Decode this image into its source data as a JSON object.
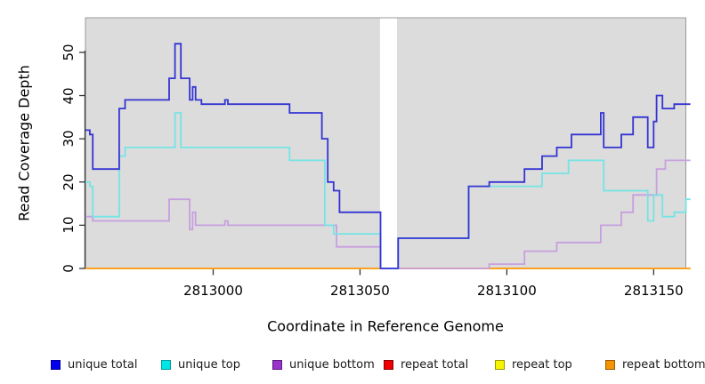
{
  "chart_data": {
    "type": "line",
    "subtype": "step-coverage-plot",
    "title": "",
    "xlabel": "Coordinate in Reference Genome",
    "ylabel": "Read Coverage Depth",
    "xlim": [
      2812956.5,
      2813162.5
    ],
    "ylim": [
      0,
      58
    ],
    "x_ticks": [
      2813000,
      2813050,
      2813100,
      2813150
    ],
    "x_tick_labels": [
      "2813000",
      "2813050",
      "2813100",
      "2813150"
    ],
    "y_ticks": [
      0,
      10,
      20,
      30,
      40,
      50
    ],
    "y_tick_labels": [
      "0",
      "10",
      "20",
      "30",
      "40",
      "50"
    ],
    "grid": false,
    "plot_background": "#dcdcdc",
    "plot_border_color": "#999999",
    "axis_color": "#333333",
    "gap_region": {
      "x_start": 2813056.8,
      "x_end": 2813062.6,
      "color": "#ffffff"
    },
    "legend_position": "bottom",
    "draw_order": [
      3,
      4,
      5,
      2,
      1,
      0
    ],
    "series": [
      {
        "name": "unique total",
        "line_color": "#3434d4",
        "legend_fill": "#0000ee",
        "legend_border": "#00009a",
        "steps": [
          [
            2812956.5,
            32
          ],
          [
            2812958,
            31
          ],
          [
            2812959,
            23
          ],
          [
            2812968,
            37
          ],
          [
            2812970,
            39
          ],
          [
            2812985,
            44
          ],
          [
            2812987,
            52
          ],
          [
            2812989,
            44
          ],
          [
            2812992,
            39
          ],
          [
            2812993,
            42
          ],
          [
            2812994,
            39
          ],
          [
            2812996,
            38
          ],
          [
            2813004,
            39
          ],
          [
            2813005,
            38
          ],
          [
            2813026,
            36
          ],
          [
            2813037,
            30
          ],
          [
            2813039,
            20
          ],
          [
            2813041,
            18
          ],
          [
            2813043,
            13
          ],
          [
            2813057,
            0
          ],
          [
            2813063,
            7
          ],
          [
            2813087,
            19
          ],
          [
            2813094,
            20
          ],
          [
            2813106,
            23
          ],
          [
            2813112,
            26
          ],
          [
            2813117,
            28
          ],
          [
            2813122,
            31
          ],
          [
            2813132,
            36
          ],
          [
            2813133,
            28
          ],
          [
            2813139,
            31
          ],
          [
            2813143,
            35
          ],
          [
            2813148,
            28
          ],
          [
            2813150,
            34
          ],
          [
            2813151,
            40
          ],
          [
            2813153,
            37
          ],
          [
            2813157,
            38
          ]
        ]
      },
      {
        "name": "unique top",
        "line_color": "#74e4e4",
        "legend_fill": "#00e5e5",
        "legend_border": "#009a9a",
        "steps": [
          [
            2812956.5,
            20
          ],
          [
            2812958,
            19
          ],
          [
            2812959,
            12
          ],
          [
            2812968,
            26
          ],
          [
            2812970,
            28
          ],
          [
            2812987,
            36
          ],
          [
            2812989,
            28
          ],
          [
            2813026,
            25
          ],
          [
            2813038,
            10
          ],
          [
            2813041,
            8
          ],
          [
            2813057,
            0
          ],
          [
            2813063,
            7
          ],
          [
            2813087,
            19
          ],
          [
            2813112,
            22
          ],
          [
            2813121,
            25
          ],
          [
            2813133,
            18
          ],
          [
            2813148,
            11
          ],
          [
            2813150,
            17
          ],
          [
            2813153,
            12
          ],
          [
            2813157,
            13
          ],
          [
            2813161,
            16
          ]
        ]
      },
      {
        "name": "unique bottom",
        "line_color": "#c79fdf",
        "legend_fill": "#9933cc",
        "legend_border": "#5c1a80",
        "steps": [
          [
            2812956.5,
            12
          ],
          [
            2812959,
            11
          ],
          [
            2812985,
            16
          ],
          [
            2812992,
            9
          ],
          [
            2812993,
            13
          ],
          [
            2812994,
            10
          ],
          [
            2813004,
            11
          ],
          [
            2813005,
            10
          ],
          [
            2813042,
            5
          ],
          [
            2813057,
            0
          ],
          [
            2813094,
            1
          ],
          [
            2813106,
            4
          ],
          [
            2813117,
            6
          ],
          [
            2813132,
            10
          ],
          [
            2813139,
            13
          ],
          [
            2813143,
            17
          ],
          [
            2813151,
            23
          ],
          [
            2813154,
            25
          ]
        ]
      },
      {
        "name": "repeat total",
        "line_color": "#e03030",
        "legend_fill": "#ee0000",
        "legend_border": "#8a0000",
        "steps": [
          [
            2812956.5,
            0
          ]
        ]
      },
      {
        "name": "repeat top",
        "line_color": "#f0f000",
        "legend_fill": "#f5f500",
        "legend_border": "#9a9a00",
        "steps": [
          [
            2812956.5,
            0
          ]
        ]
      },
      {
        "name": "repeat bottom",
        "line_color": "#ff9b21",
        "legend_fill": "#f59300",
        "legend_border": "#9a5c00",
        "steps": [
          [
            2812956.5,
            0
          ]
        ]
      }
    ]
  }
}
